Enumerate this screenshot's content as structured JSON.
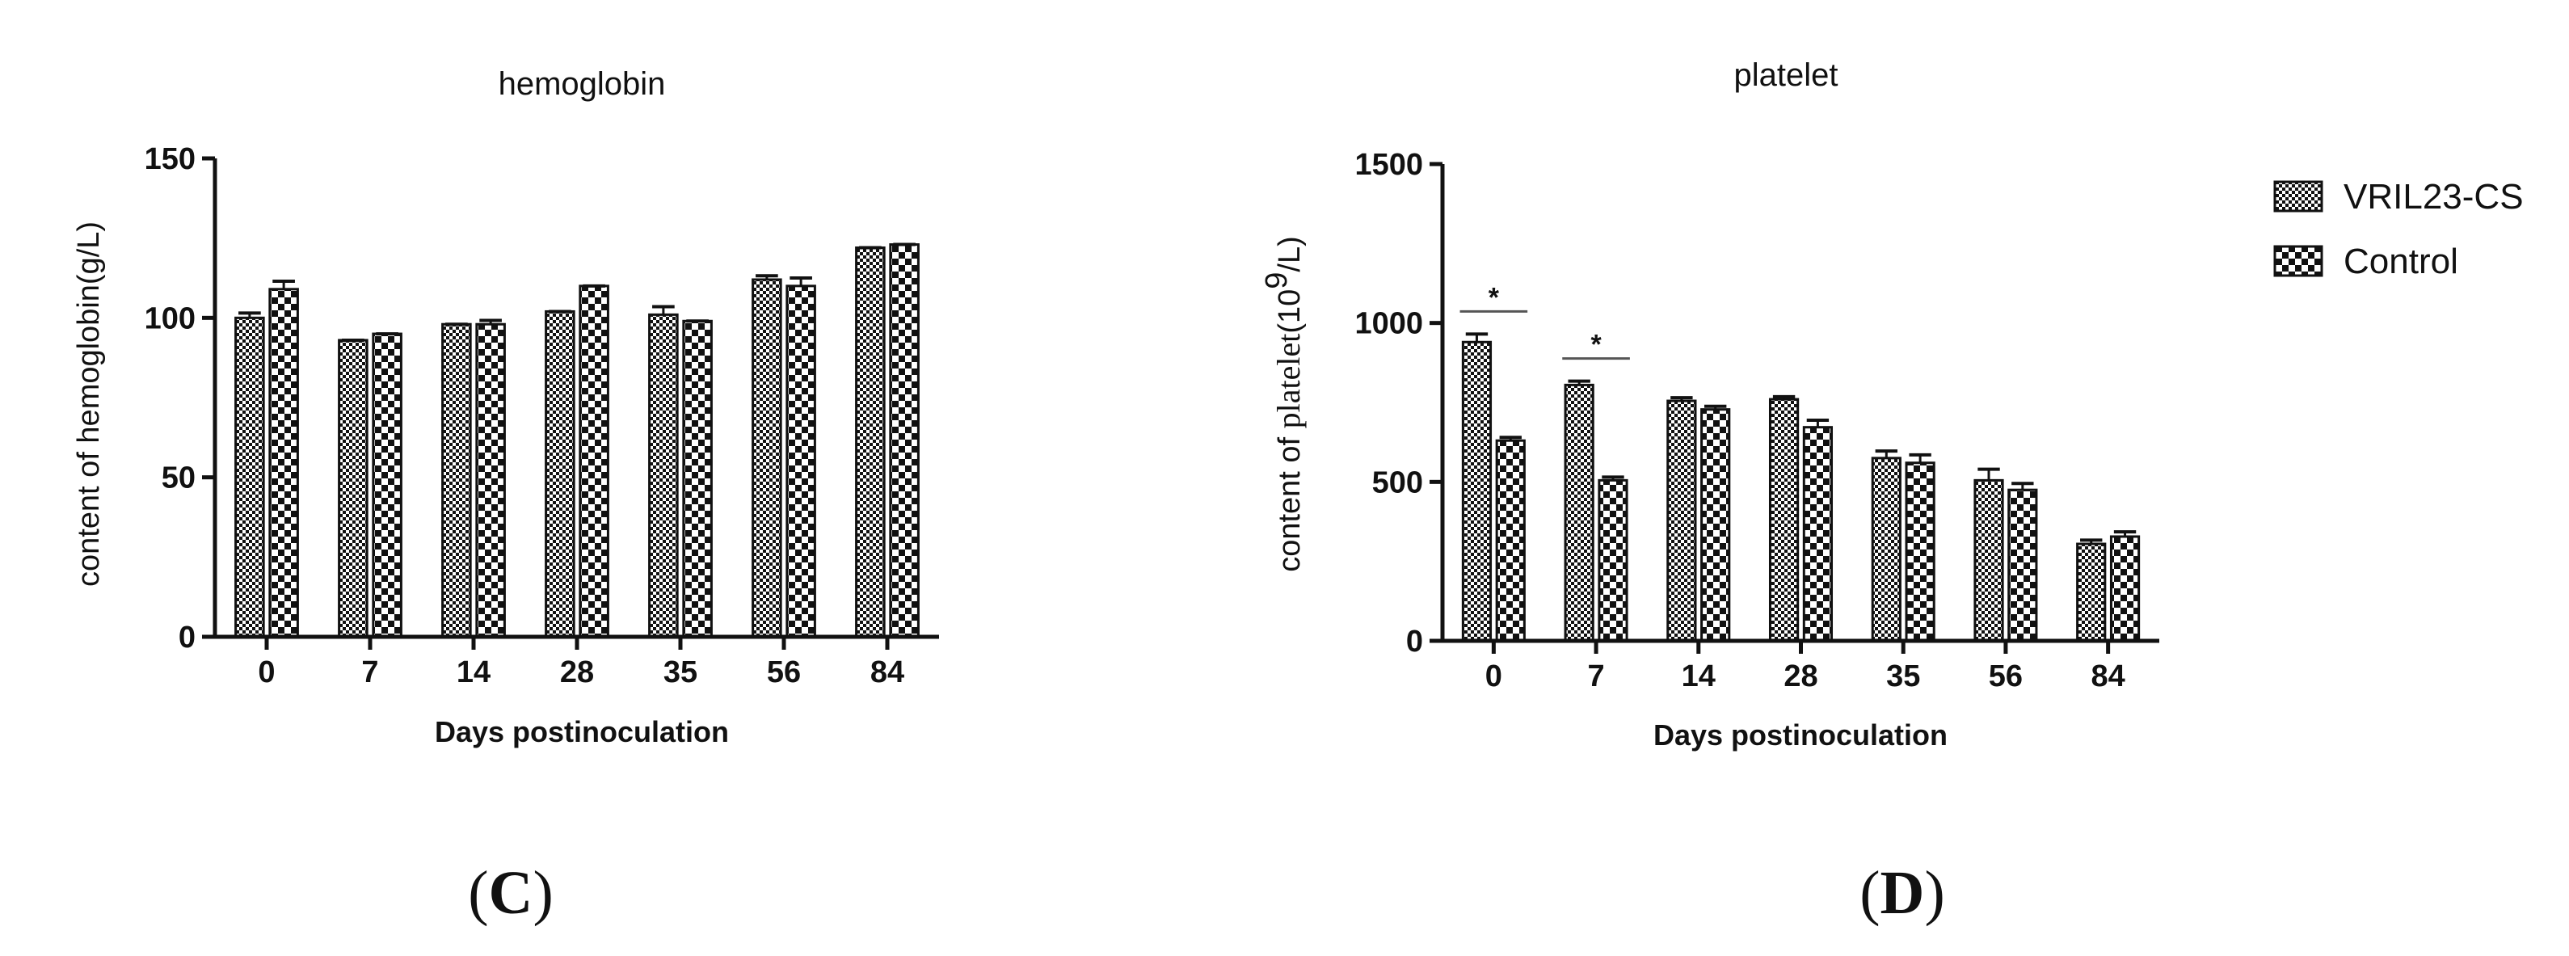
{
  "colors": {
    "axis": "#111111",
    "bar_outline": "#111111",
    "background": "#ffffff"
  },
  "legend": {
    "placement": "top-right",
    "items": [
      {
        "label": "VRIL23-CS",
        "pattern": "fine-checker"
      },
      {
        "label": "Control",
        "pattern": "coarse-checker"
      }
    ]
  },
  "chart_data": [
    {
      "type": "bar",
      "panel": "C",
      "title": "hemoglobin",
      "xlabel": "Days postinoculation",
      "ylabel": "content of hemoglobin(g/L)",
      "categories": [
        "0",
        "7",
        "14",
        "28",
        "35",
        "56",
        "84"
      ],
      "ylim": [
        0,
        150
      ],
      "yticks": [
        "0",
        "50",
        "100",
        "150"
      ],
      "series": [
        {
          "name": "VRIL23-CS",
          "values": [
            100,
            93,
            98,
            102,
            101,
            112,
            122
          ],
          "errors": [
            1.5,
            0,
            0,
            0,
            2.5,
            1.2,
            0
          ]
        },
        {
          "name": "Control",
          "values": [
            109,
            95,
            98,
            110,
            99,
            110,
            123
          ],
          "errors": [
            2.5,
            0,
            1.2,
            0,
            0,
            2.5,
            0
          ]
        }
      ],
      "annotations": []
    },
    {
      "type": "bar",
      "panel": "D",
      "title": "platelet",
      "xlabel": "Days postinoculation",
      "ylabel_prefix": "content of ",
      "ylabel_word": "platelet",
      "ylabel_unit_open": "(10",
      "ylabel_unit_exp": "9",
      "ylabel_unit_close": "/L)",
      "categories": [
        "0",
        "7",
        "14",
        "28",
        "35",
        "56",
        "84"
      ],
      "ylim": [
        0,
        1500
      ],
      "yticks": [
        "0",
        "500",
        "1000",
        "1500"
      ],
      "series": [
        {
          "name": "VRIL23-CS",
          "values": [
            940,
            805,
            755,
            760,
            575,
            505,
            305
          ],
          "errors": [
            25,
            12,
            10,
            8,
            22,
            35,
            12
          ]
        },
        {
          "name": "Control",
          "values": [
            630,
            505,
            728,
            672,
            560,
            475,
            328
          ],
          "errors": [
            10,
            10,
            10,
            22,
            25,
            20,
            15
          ]
        }
      ],
      "annotations": [
        {
          "text": "*",
          "category": "0"
        },
        {
          "text": "*",
          "category": "7"
        }
      ]
    }
  ],
  "panel_labels": [
    {
      "open": "(",
      "letter": "C",
      "close": ")"
    },
    {
      "open": "(",
      "letter": "D",
      "close": ")"
    }
  ]
}
